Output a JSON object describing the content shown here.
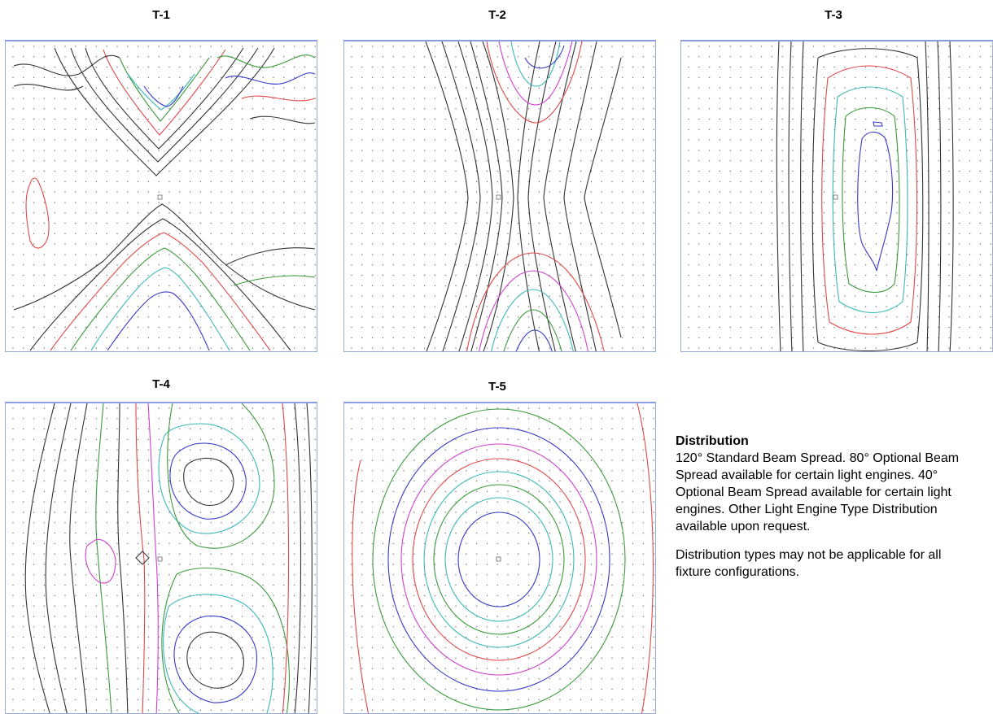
{
  "plots": [
    {
      "id": "t1",
      "title": "T-1"
    },
    {
      "id": "t2",
      "title": "T-2"
    },
    {
      "id": "t3",
      "title": "T-3"
    },
    {
      "id": "t4",
      "title": "T-4"
    },
    {
      "id": "t5",
      "title": "T-5"
    }
  ],
  "distribution": {
    "heading": "Distribution",
    "paragraph1": "120° Standard Beam Spread.  80° Optional Beam Spread available for certain light engines.  40° Optional Beam Spread available for certain light engines.  Other Light Engine Type Distribution available upon request.",
    "paragraph2": "Distribution types may not be applicable for all fixture configurations."
  },
  "contour_colors": {
    "black": "#333333",
    "red": "#e04848",
    "green": "#3a9a3a",
    "blue": "#3838c8",
    "cyan": "#3cb8b8",
    "magenta": "#d040d0"
  }
}
